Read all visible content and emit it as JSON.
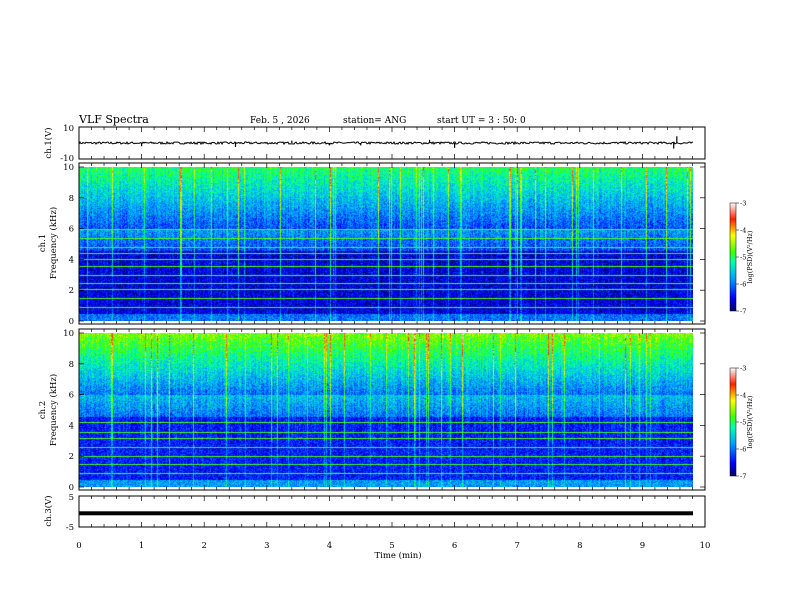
{
  "header": {
    "title": "VLF Spectra",
    "date": "Feb. 5 , 2026",
    "station": "station= ANG",
    "start": "start UT =  3 : 50: 0"
  },
  "chart_data": [
    {
      "type": "line",
      "name": "ch1-waveform",
      "ylabel": "ch.1(V)",
      "ylim": [
        -10,
        10
      ],
      "ytick_labels": [
        "10",
        "-10"
      ],
      "xlim": [
        0,
        10
      ],
      "baseline": 0,
      "spikes": [
        {
          "t": 1.0,
          "v": -2
        },
        {
          "t": 2.5,
          "v": -2.5
        },
        {
          "t": 3.4,
          "v": 1.5
        },
        {
          "t": 4.0,
          "v": -1.5
        },
        {
          "t": 4.5,
          "v": -1.5
        },
        {
          "t": 5.6,
          "v": 2
        },
        {
          "t": 6.0,
          "v": -3
        },
        {
          "t": 9.5,
          "v": -3.5
        },
        {
          "t": 9.55,
          "v": 4.2
        }
      ]
    },
    {
      "type": "heatmap",
      "name": "ch1-spectrogram",
      "ylabel": "ch.1\nFrequency (kHz)",
      "xlim": [
        0,
        9.85
      ],
      "ylim": [
        0,
        10
      ],
      "ytick_labels": [
        "0",
        "2",
        "4",
        "6",
        "8",
        "10"
      ],
      "colorbar": {
        "label": "log(PSD)(V²/Hz)",
        "range": [
          -7,
          -3
        ],
        "tick_labels": [
          "-3",
          "-4",
          "-5",
          "-6",
          "-7"
        ]
      },
      "lines_khz": [
        0.9,
        1.5,
        2.1,
        2.5,
        3.0,
        3.6,
        4.0,
        4.4,
        4.8,
        5.4,
        6.0
      ],
      "background_level": -6.2,
      "high_freq_level": -5.0
    },
    {
      "type": "heatmap",
      "name": "ch2-spectrogram",
      "ylabel": "ch.2\nFrequency (kHz)",
      "xlim": [
        0,
        9.85
      ],
      "ylim": [
        0,
        10
      ],
      "ytick_labels": [
        "0",
        "2",
        "4",
        "6",
        "8",
        "10"
      ],
      "colorbar": {
        "label": "log(PSD)(V²/Hz)",
        "range": [
          -7,
          -3
        ],
        "tick_labels": [
          "-3",
          "-4",
          "-5",
          "-6",
          "-7"
        ]
      },
      "lines_khz": [
        0.9,
        1.5,
        2.0,
        2.6,
        3.2,
        3.6,
        4.2
      ],
      "background_level": -6.0,
      "high_freq_level": -4.6
    },
    {
      "type": "line",
      "name": "ch3-waveform",
      "ylabel": "ch.3(V)",
      "ylim": [
        -5,
        5
      ],
      "ytick_labels": [
        "5",
        "-5"
      ],
      "xlim": [
        0,
        10
      ],
      "value": -1.5
    }
  ],
  "x_axis": {
    "label": "Time (min)",
    "tick_labels": [
      "0",
      "1",
      "2",
      "3",
      "4",
      "5",
      "6",
      "7",
      "8",
      "9",
      "10"
    ]
  }
}
